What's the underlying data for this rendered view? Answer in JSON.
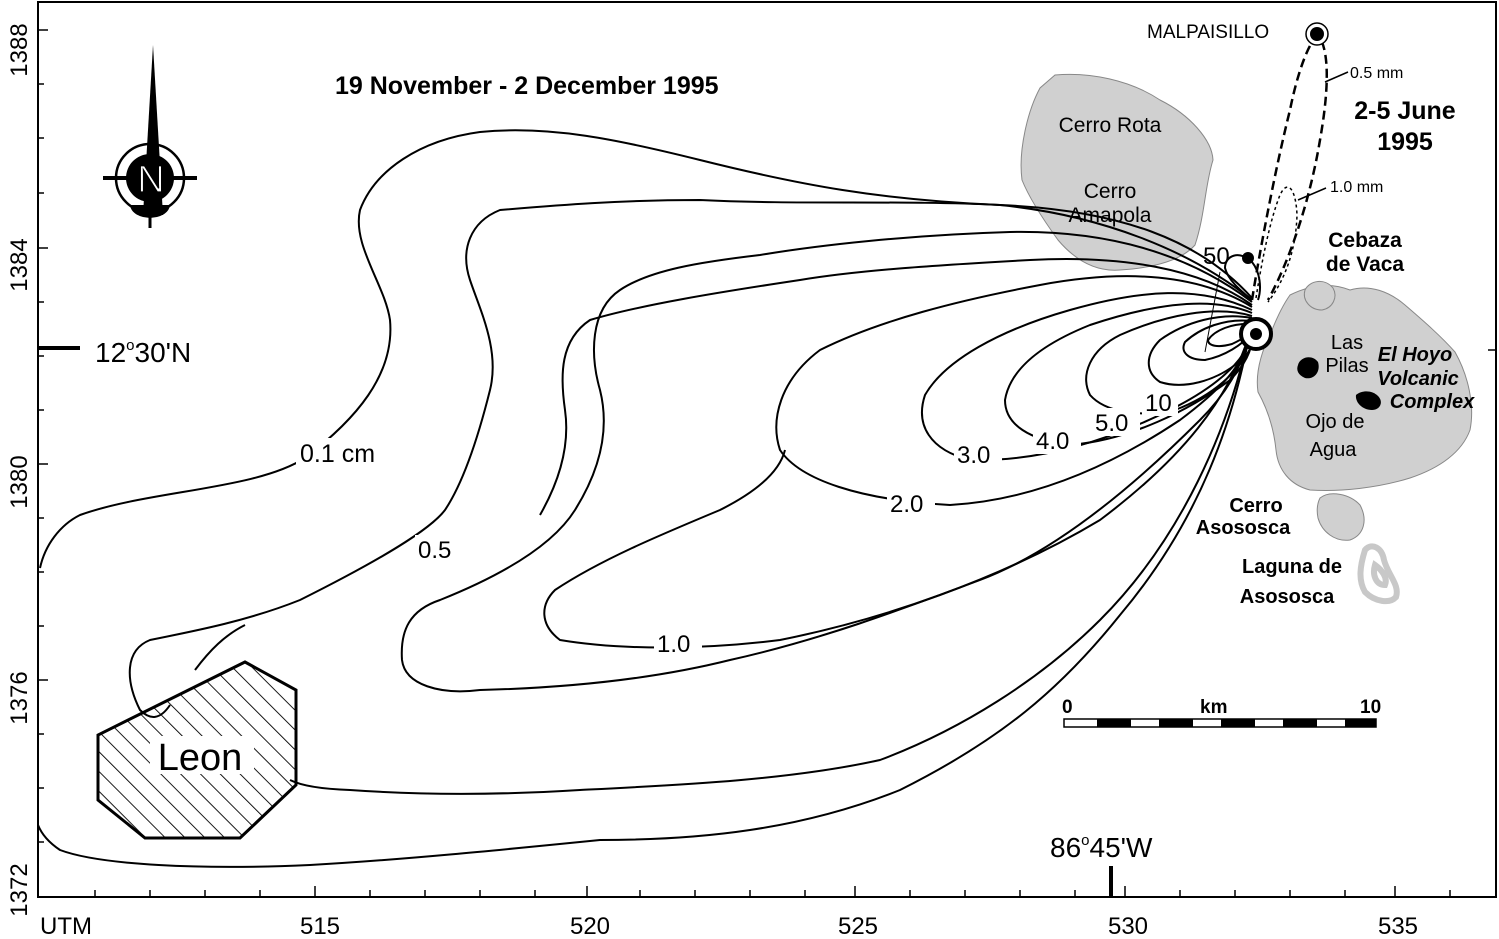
{
  "title": "19 November - 2 December 1995",
  "inset_title": "2-5 June 1995",
  "inset_title_lines": [
    "2-5 June",
    "1995"
  ],
  "north_arrow": {
    "letter": "N",
    "icon": "north-arrow-icon"
  },
  "axes": {
    "x_label": "UTM",
    "x_ticks": [
      "515",
      "520",
      "525",
      "530",
      "535"
    ],
    "y_ticks": [
      "1388",
      "1384",
      "1380",
      "1376",
      "1372"
    ],
    "lat_label": "12°30'N",
    "lat_parts": {
      "deg": "12",
      "rest": "30'N"
    },
    "lon_label": "86°45'W",
    "lon_parts": {
      "deg": "86",
      "rest": "45'W"
    }
  },
  "isopachs": [
    {
      "label": "0.1 cm",
      "value": 0.1,
      "unit": "cm"
    },
    {
      "label": "0.5",
      "value": 0.5
    },
    {
      "label": "1.0",
      "value": 1.0
    },
    {
      "label": "2.0",
      "value": 2.0
    },
    {
      "label": "3.0",
      "value": 3.0
    },
    {
      "label": "4.0",
      "value": 4.0
    },
    {
      "label": "5.0",
      "value": 5.0
    },
    {
      "label": "10",
      "value": 10
    },
    {
      "label": "50",
      "value": 50
    }
  ],
  "inset_isopachs": [
    {
      "label": "0.5 mm",
      "value": 0.5,
      "unit": "mm"
    },
    {
      "label": "1.0 mm",
      "value": 1.0,
      "unit": "mm"
    }
  ],
  "places": {
    "malpaisillo": "MALPAISILLO",
    "cerro_rota": "Cerro Rota",
    "cerro_amapola": [
      "Cerro",
      "Amapola"
    ],
    "cebaza": [
      "Cebaza",
      "de Vaca"
    ],
    "las_pilas": [
      "Las",
      "Pilas"
    ],
    "ojo_de_agua": [
      "Ojo de",
      "Agua"
    ],
    "el_hoyo": [
      "El Hoyo",
      "Volcanic",
      "Complex"
    ],
    "cerro_asososca": [
      "Cerro",
      "Asososca"
    ],
    "laguna_asososca": [
      "Laguna de",
      "Asososca"
    ],
    "leon": "Leon"
  },
  "scale_bar": {
    "start": "0",
    "unit": "km",
    "end": "10"
  },
  "colors": {
    "volcano_fill": "#d0d0d0",
    "lake_stroke": "#c8c8c8",
    "ink": "#000000"
  }
}
